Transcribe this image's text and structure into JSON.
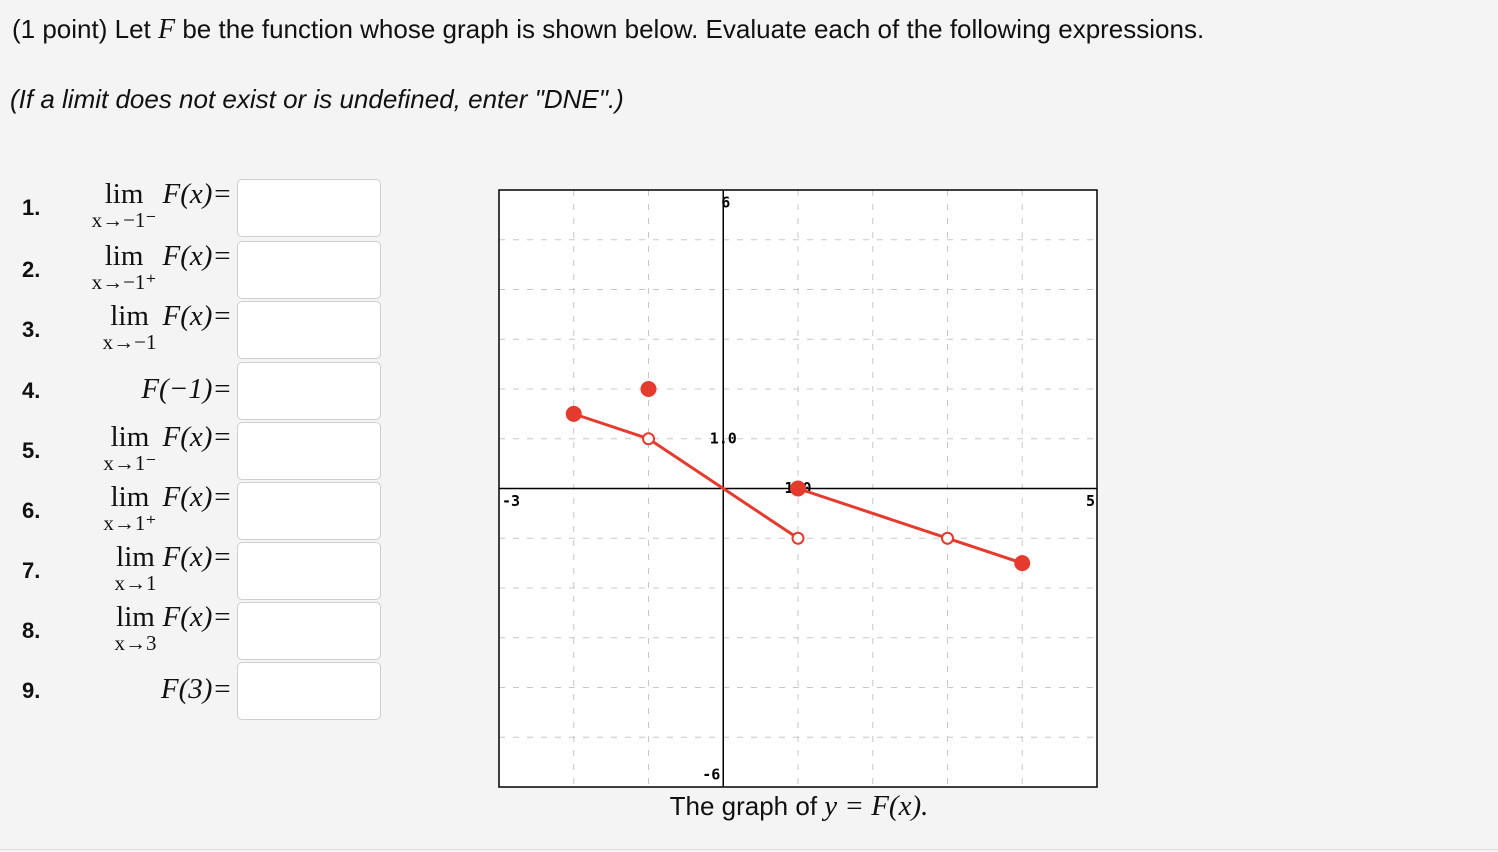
{
  "header": {
    "prompt_before": "(1 point) Let",
    "variable": "F",
    "prompt_after": "be the function whose graph is shown below. Evaluate each of the following expressions.",
    "note": "(If a limit does not exist or is undefined, enter \"DNE\".)"
  },
  "questions": [
    {
      "number": "1.",
      "lim": "lim",
      "sub": "x→−1⁻",
      "func": "F(x)="
    },
    {
      "number": "2.",
      "lim": "lim",
      "sub": "x→−1⁺",
      "func": "F(x)="
    },
    {
      "number": "3.",
      "lim": "lim",
      "sub": "x→−1",
      "func": "F(x)="
    },
    {
      "number": "4.",
      "func": "F(−1)="
    },
    {
      "number": "5.",
      "lim": "lim",
      "sub": "x→1⁻",
      "func": "F(x)="
    },
    {
      "number": "6.",
      "lim": "lim",
      "sub": "x→1⁺",
      "func": "F(x)="
    },
    {
      "number": "7.",
      "lim": "lim",
      "sub": "x→1",
      "func": "F(x)="
    },
    {
      "number": "8.",
      "lim": "lim",
      "sub": "x→3",
      "func": "F(x)="
    },
    {
      "number": "9.",
      "func": "F(3)="
    }
  ],
  "chart_data": {
    "type": "line",
    "xlim": [
      -3,
      5
    ],
    "ylim": [
      -6,
      6
    ],
    "xticks": [
      -3,
      {
        "value": 1,
        "label": "1.0"
      },
      5
    ],
    "yticks": [
      -6,
      {
        "value": 1,
        "label": "1.0"
      },
      6
    ],
    "xgrid": [
      -2,
      -1,
      1,
      2,
      3,
      4
    ],
    "ygrid": [
      -5,
      -4,
      -3,
      -2,
      -1,
      1,
      2,
      3,
      4,
      5
    ],
    "grid": true,
    "series": [
      {
        "color": "#e53b2e",
        "x": [
          -2,
          -1
        ],
        "values": [
          1.5,
          1
        ]
      },
      {
        "color": "#e53b2e",
        "x": [
          -1,
          1
        ],
        "values": [
          1,
          -1
        ]
      },
      {
        "color": "#e53b2e",
        "x": [
          1,
          4
        ],
        "values": [
          0,
          -1.5
        ]
      }
    ],
    "points": {
      "color": "#e53b2e",
      "x": [
        -2,
        -1,
        -1,
        1,
        1,
        3,
        4
      ],
      "values": [
        1.5,
        1,
        2,
        -1,
        0,
        -1,
        -1.5
      ],
      "filled": [
        true,
        false,
        true,
        false,
        true,
        false,
        true
      ]
    },
    "caption_text": "The graph of",
    "caption_math": "y = F(x)."
  }
}
